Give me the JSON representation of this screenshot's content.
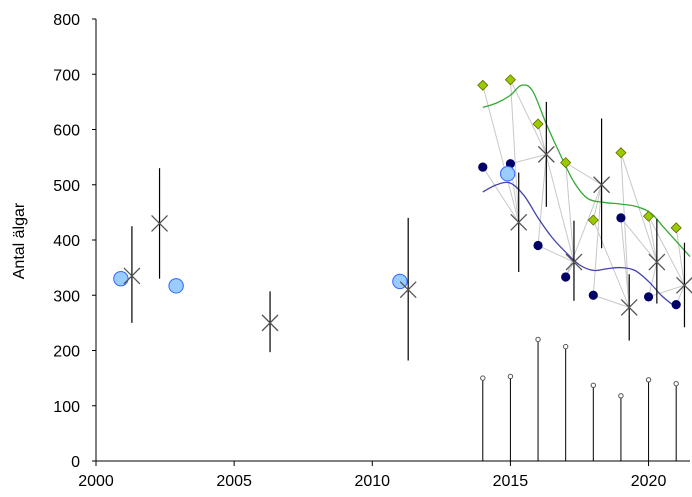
{
  "chart_data": {
    "type": "scatter",
    "title": "",
    "xlabel": "",
    "ylabel": "Antal älgar",
    "xlim": [
      2000,
      2021.5
    ],
    "ylim": [
      0,
      800
    ],
    "x_ticks": [
      2000,
      2005,
      2010,
      2015,
      2020
    ],
    "y_ticks": [
      0,
      100,
      200,
      300,
      400,
      500,
      600,
      700,
      800
    ],
    "grid": false,
    "legend": "none",
    "colors": {
      "blue_circles": "#99ccff",
      "blue_circles_stroke": "#3366ff",
      "navy_dots": "#000066",
      "green_diamonds": "#99cc00",
      "green_diamonds_stroke": "#666600",
      "cross_markers": "#555555",
      "green_trend": "#33aa33",
      "blue_trend": "#4444aa",
      "connector_lines": "#c8c8c8",
      "error_bars": "#000000"
    },
    "series": [
      {
        "marker": "light-blue circle",
        "points": [
          {
            "x": 2000.9,
            "y": 330
          },
          {
            "x": 2002.9,
            "y": 317
          },
          {
            "x": 2011.0,
            "y": 325
          },
          {
            "x": 2014.9,
            "y": 520
          }
        ]
      },
      {
        "marker": "cross with error bar",
        "points": [
          {
            "x": 2001.3,
            "y": 335,
            "low": 250,
            "high": 425
          },
          {
            "x": 2002.3,
            "y": 430,
            "low": 330,
            "high": 530
          },
          {
            "x": 2006.3,
            "y": 250,
            "low": 197,
            "high": 307
          },
          {
            "x": 2011.3,
            "y": 310,
            "low": 182,
            "high": 440
          },
          {
            "x": 2015.3,
            "y": 432,
            "low": 342,
            "high": 522
          },
          {
            "x": 2016.3,
            "y": 555,
            "low": 460,
            "high": 650
          },
          {
            "x": 2017.3,
            "y": 360,
            "low": 290,
            "high": 435
          },
          {
            "x": 2018.3,
            "y": 500,
            "low": 385,
            "high": 620
          },
          {
            "x": 2019.3,
            "y": 278,
            "low": 218,
            "high": 338
          },
          {
            "x": 2020.3,
            "y": 360,
            "low": 285,
            "high": 438
          },
          {
            "x": 2021.3,
            "y": 318,
            "low": 242,
            "high": 395
          }
        ]
      },
      {
        "marker": "navy dot",
        "points": [
          {
            "x": 2014.0,
            "y": 532
          },
          {
            "x": 2015.0,
            "y": 538
          },
          {
            "x": 2016.0,
            "y": 390
          },
          {
            "x": 2017.0,
            "y": 333
          },
          {
            "x": 2018.0,
            "y": 300
          },
          {
            "x": 2019.0,
            "y": 440
          },
          {
            "x": 2020.0,
            "y": 297
          },
          {
            "x": 2021.0,
            "y": 283
          }
        ]
      },
      {
        "marker": "green diamond",
        "points": [
          {
            "x": 2014.0,
            "y": 680
          },
          {
            "x": 2015.0,
            "y": 690
          },
          {
            "x": 2016.0,
            "y": 610
          },
          {
            "x": 2017.0,
            "y": 540
          },
          {
            "x": 2018.0,
            "y": 436
          },
          {
            "x": 2019.0,
            "y": 558
          },
          {
            "x": 2020.0,
            "y": 443
          },
          {
            "x": 2021.0,
            "y": 422
          }
        ]
      },
      {
        "marker": "vertical lollipop",
        "points": [
          {
            "x": 2014.0,
            "y": 150
          },
          {
            "x": 2015.0,
            "y": 153
          },
          {
            "x": 2016.0,
            "y": 220
          },
          {
            "x": 2017.0,
            "y": 207
          },
          {
            "x": 2018.0,
            "y": 137
          },
          {
            "x": 2019.0,
            "y": 118
          },
          {
            "x": 2020.0,
            "y": 147
          },
          {
            "x": 2021.0,
            "y": 140
          }
        ]
      }
    ],
    "trend_lines": [
      {
        "color": "green",
        "points": [
          [
            2014.0,
            640
          ],
          [
            2014.5,
            648
          ],
          [
            2015.0,
            662
          ],
          [
            2015.4,
            680
          ],
          [
            2015.8,
            670
          ],
          [
            2016.3,
            610
          ],
          [
            2016.8,
            555
          ],
          [
            2017.3,
            505
          ],
          [
            2017.8,
            475
          ],
          [
            2018.4,
            468
          ],
          [
            2019.0,
            465
          ],
          [
            2019.6,
            460
          ],
          [
            2020.1,
            448
          ],
          [
            2020.6,
            420
          ],
          [
            2021.5,
            370
          ]
        ]
      },
      {
        "color": "blue",
        "points": [
          [
            2014.0,
            487
          ],
          [
            2014.5,
            500
          ],
          [
            2015.0,
            503
          ],
          [
            2015.5,
            480
          ],
          [
            2016.0,
            440
          ],
          [
            2016.5,
            405
          ],
          [
            2017.0,
            378
          ],
          [
            2017.5,
            355
          ],
          [
            2018.0,
            345
          ],
          [
            2018.5,
            348
          ],
          [
            2019.0,
            350
          ],
          [
            2019.5,
            345
          ],
          [
            2020.0,
            325
          ],
          [
            2020.5,
            298
          ],
          [
            2021.0,
            278
          ]
        ]
      }
    ],
    "connector_lines": [
      {
        "from": "navy dot",
        "to": "cross with error bar"
      },
      {
        "from": "green diamond",
        "to": "cross with error bar"
      }
    ]
  }
}
